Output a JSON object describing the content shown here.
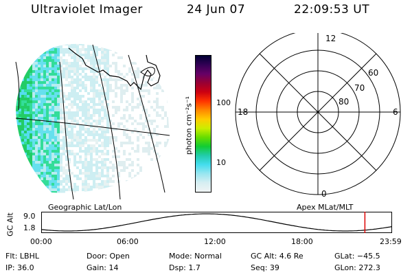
{
  "header": {
    "title": "Ultraviolet Imager",
    "date": "24 Jun 07",
    "time": "22:09:53 UT"
  },
  "colorbar": {
    "unit_label": "photon cm⁻²s⁻¹",
    "ticks": [
      "100",
      "10"
    ],
    "colors": [
      "#000033",
      "#330055",
      "#660066",
      "#990033",
      "#cc0011",
      "#ff3300",
      "#ff8800",
      "#ffcc00",
      "#ccee00",
      "#66dd00",
      "#11cc33",
      "#22ccaa",
      "#44ddee",
      "#99e6f0",
      "#d6eef2",
      "#f0f4f4"
    ]
  },
  "polar_plot": {
    "ring_labels": [
      "60",
      "70",
      "80"
    ],
    "mlt_labels": {
      "top": "12",
      "left": "18",
      "right": "6",
      "bottom": "0"
    }
  },
  "captions": {
    "left": "Geographic Lat/Lon",
    "right": "Apex MLat/MLT"
  },
  "altitude_panel": {
    "axis_label": "GC Alt",
    "y_ticks": [
      "9.0",
      "1.8"
    ],
    "time_ticks": [
      "00:00",
      "06:00",
      "12:00",
      "18:00",
      "23:59"
    ],
    "current_time_marker_hours": 22.16,
    "marker_color": "#dd0000"
  },
  "status": {
    "flt": "Flt: LBHL",
    "ip": "IP: 36.0",
    "door": "Door: Open",
    "gain": "Gain: 14",
    "mode": "Mode: Normal",
    "dsp": "Dsp:   1.7",
    "gc_alt": "GC Alt: 4.6 Re",
    "seq": "Seq: 39",
    "glat": "GLat: −45.5",
    "glon": "GLon: 272.3"
  }
}
